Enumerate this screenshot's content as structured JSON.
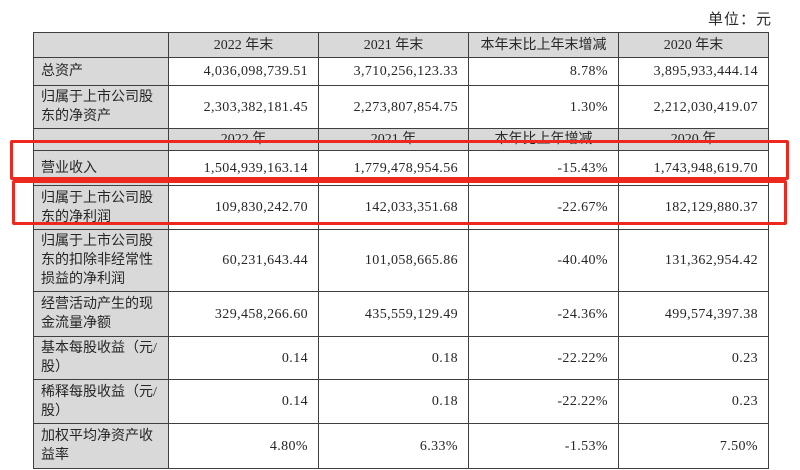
{
  "page": {
    "unit_label": "单位：元"
  },
  "colors": {
    "highlight_red": "#ed281e",
    "header_gray": "#d9d9d9",
    "border_gray": "#3f3f3f"
  },
  "table": {
    "rows": [
      {
        "kind": "header",
        "cells": [
          "",
          "2022 年末",
          "2021 年末",
          "本年末比上年末增减",
          "2020 年末"
        ]
      },
      {
        "kind": "data",
        "label": "总资产",
        "values": [
          "4,036,098,739.51",
          "3,710,256,123.33",
          "8.78%",
          "3,895,933,444.14"
        ],
        "highlighted": false
      },
      {
        "kind": "data",
        "label": "归属于上市公司股东的净资产",
        "values": [
          "2,303,382,181.45",
          "2,273,807,854.75",
          "1.30%",
          "2,212,030,419.07"
        ],
        "highlighted": false
      },
      {
        "kind": "header",
        "cells": [
          "",
          "2022 年",
          "2021 年",
          "本年比上年增减",
          "2020 年"
        ]
      },
      {
        "kind": "data",
        "label": "营业收入",
        "values": [
          "1,504,939,163.14",
          "1,779,478,954.56",
          "-15.43%",
          "1,743,948,619.70"
        ],
        "highlighted": true
      },
      {
        "kind": "data",
        "label": "归属于上市公司股东的净利润",
        "values": [
          "109,830,242.70",
          "142,033,351.68",
          "-22.67%",
          "182,129,880.37"
        ],
        "highlighted": true
      },
      {
        "kind": "data",
        "label": "归属于上市公司股东的扣除非经常性损益的净利润",
        "values": [
          "60,231,643.44",
          "101,058,665.86",
          "-40.40%",
          "131,362,954.42"
        ],
        "highlighted": false
      },
      {
        "kind": "data",
        "label": "经营活动产生的现金流量净额",
        "values": [
          "329,458,266.60",
          "435,559,129.49",
          "-24.36%",
          "499,574,397.38"
        ],
        "highlighted": false
      },
      {
        "kind": "data",
        "label": "基本每股收益（元/股）",
        "values": [
          "0.14",
          "0.18",
          "-22.22%",
          "0.23"
        ],
        "highlighted": false
      },
      {
        "kind": "data",
        "label": "稀释每股收益（元/股）",
        "values": [
          "0.14",
          "0.18",
          "-22.22%",
          "0.23"
        ],
        "highlighted": false
      },
      {
        "kind": "data",
        "label": "加权平均净资产收益率",
        "values": [
          "4.80%",
          "6.33%",
          "-1.53%",
          "7.50%"
        ],
        "highlighted": false
      }
    ]
  }
}
